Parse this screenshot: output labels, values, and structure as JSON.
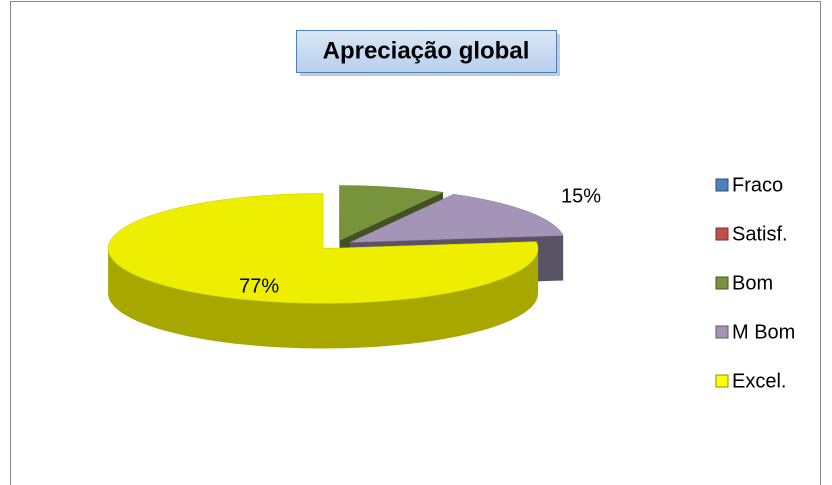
{
  "chart_data": {
    "type": "pie",
    "title": "Apreciação global",
    "categories": [
      "Fraco",
      "Satisf.",
      "Bom",
      "M Bom",
      "Excel."
    ],
    "values": [
      0,
      0,
      8,
      15,
      77
    ],
    "value_labels": [
      null,
      null,
      null,
      "15%",
      "77%"
    ],
    "colors": [
      "#4f81bd",
      "#c0504d",
      "#77933c",
      "#a495b8",
      "#eeee00"
    ],
    "legend": "right",
    "three_d": true,
    "exploded": true
  }
}
